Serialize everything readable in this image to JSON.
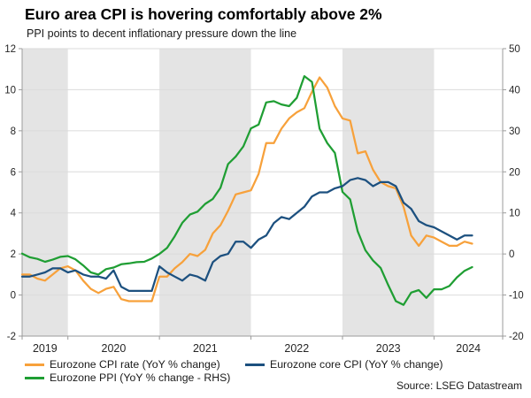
{
  "header": {
    "title": "Euro area CPI is hovering comfortably above 2%",
    "subtitle": "PPI points to decent inflationary pressure down the line"
  },
  "source_note": "Source: LSEG Datastream",
  "chart_data": {
    "type": "line",
    "title": "Euro area CPI is hovering comfortably above 2%",
    "subtitle": "PPI points to decent inflationary pressure down the line",
    "x_axis": {
      "labels": [
        "2019",
        "2020",
        "2021",
        "2022",
        "2023",
        "2024"
      ],
      "axis_start": "2019-07",
      "axis_end": "2024-10",
      "data_start": "2019-07",
      "data_end": "2024-06",
      "frequency": "monthly"
    },
    "left_axis": {
      "min": -2,
      "max": 12,
      "ticks": [
        12,
        10,
        8,
        6,
        4,
        2,
        0,
        -2
      ]
    },
    "right_axis": {
      "min": -20,
      "max": 50,
      "ticks": [
        50,
        40,
        30,
        20,
        10,
        0,
        -10,
        -20
      ]
    },
    "shaded_years": [
      2019,
      2021,
      2023
    ],
    "grid": true,
    "legend_position": "bottom",
    "colors": {
      "band": "#e4e4e4",
      "grid": "#dbdbdb",
      "spine": "#9b9b9b"
    },
    "series": [
      {
        "name": "Eurozone CPI rate (YoY % change)",
        "axis": "left",
        "color": "#f7a13b",
        "values": [
          1.0,
          1.0,
          0.8,
          0.7,
          1.0,
          1.3,
          1.4,
          1.2,
          0.7,
          0.3,
          0.1,
          0.3,
          0.4,
          -0.2,
          -0.3,
          -0.3,
          -0.3,
          -0.3,
          0.9,
          0.9,
          1.3,
          1.6,
          2.0,
          1.9,
          2.2,
          3.0,
          3.4,
          4.1,
          4.9,
          5.0,
          5.1,
          5.9,
          7.4,
          7.4,
          8.1,
          8.6,
          8.9,
          9.1,
          9.9,
          10.6,
          10.1,
          9.2,
          8.6,
          8.5,
          6.9,
          7.0,
          6.1,
          5.5,
          5.3,
          5.2,
          4.3,
          2.9,
          2.4,
          2.9,
          2.8,
          2.6,
          2.4,
          2.4,
          2.6,
          2.5
        ]
      },
      {
        "name": "Eurozone core CPI (YoY % change)",
        "axis": "left",
        "color": "#1c507f",
        "values": [
          0.9,
          0.9,
          1.0,
          1.1,
          1.3,
          1.3,
          1.1,
          1.2,
          1.0,
          0.9,
          0.9,
          0.8,
          1.2,
          0.4,
          0.2,
          0.2,
          0.2,
          0.2,
          1.4,
          1.1,
          0.9,
          0.7,
          1.0,
          0.9,
          0.7,
          1.6,
          1.9,
          2.0,
          2.6,
          2.6,
          2.3,
          2.7,
          2.9,
          3.5,
          3.8,
          3.7,
          4.0,
          4.3,
          4.8,
          5.0,
          5.0,
          5.2,
          5.3,
          5.6,
          5.7,
          5.6,
          5.3,
          5.5,
          5.5,
          5.3,
          4.5,
          4.2,
          3.6,
          3.4,
          3.3,
          3.1,
          2.9,
          2.7,
          2.9,
          2.9
        ]
      },
      {
        "name": "Eurozone PPI (YoY % change - RHS)",
        "axis": "right",
        "color": "#1f9e33",
        "values": [
          0.1,
          -0.8,
          -1.2,
          -1.9,
          -1.4,
          -0.7,
          -0.5,
          -1.3,
          -2.8,
          -4.5,
          -5.0,
          -3.7,
          -3.3,
          -2.5,
          -2.3,
          -2.0,
          -1.9,
          -1.1,
          0.0,
          1.5,
          4.3,
          7.6,
          9.6,
          10.3,
          12.2,
          13.4,
          16.1,
          21.9,
          23.7,
          26.2,
          30.6,
          31.5,
          36.9,
          37.2,
          36.4,
          36.0,
          38.0,
          43.3,
          41.9,
          30.5,
          27.0,
          24.6,
          15.1,
          13.3,
          5.5,
          0.9,
          -1.6,
          -3.4,
          -7.6,
          -11.5,
          -12.4,
          -9.4,
          -8.8,
          -10.7,
          -8.6,
          -8.6,
          -7.8,
          -5.7,
          -4.1,
          -3.2
        ]
      }
    ]
  }
}
